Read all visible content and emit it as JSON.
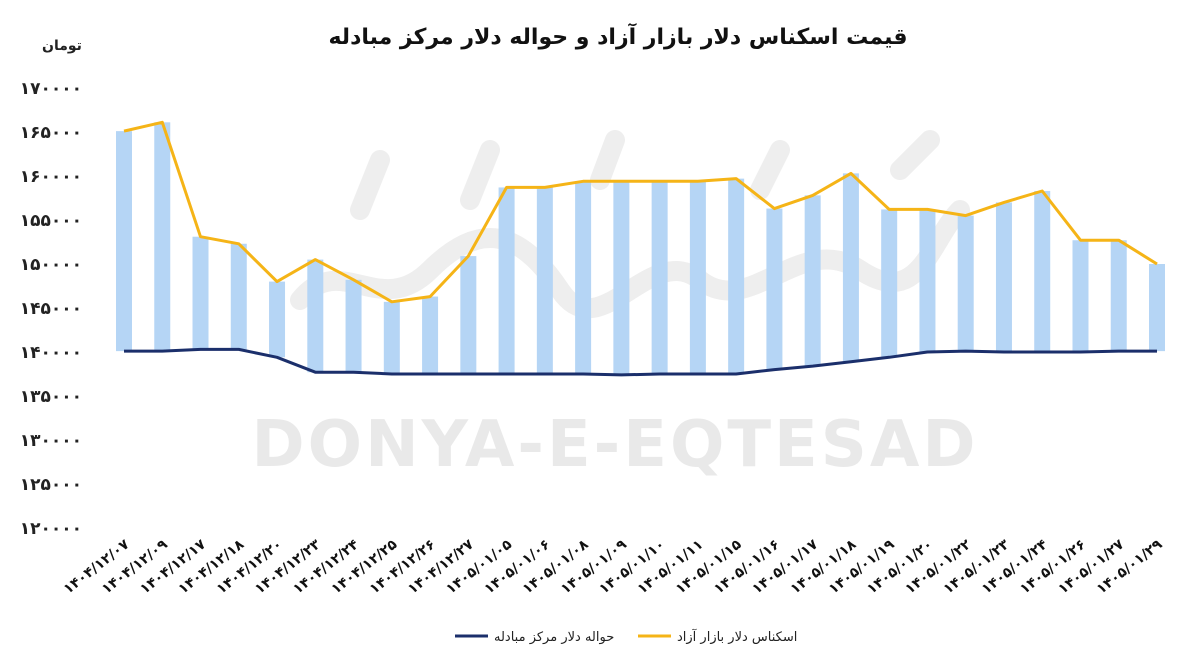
{
  "chart_data": {
    "type": "bar+line",
    "title": "قیمت اسکناس دلار بازار آزاد و حواله دلار مرکز مبادله",
    "unit_label": "تومان",
    "watermark": "DONYA-E-EQTESAD",
    "ylim": [
      120000,
      170000
    ],
    "yticks": [
      {
        "value": 170000,
        "label": "۱۷۰۰۰۰"
      },
      {
        "value": 165000,
        "label": "۱۶۵۰۰۰"
      },
      {
        "value": 160000,
        "label": "۱۶۰۰۰۰"
      },
      {
        "value": 155000,
        "label": "۱۵۵۰۰۰"
      },
      {
        "value": 150000,
        "label": "۱۵۰۰۰۰"
      },
      {
        "value": 145000,
        "label": "۱۴۵۰۰۰"
      },
      {
        "value": 140000,
        "label": "۱۴۰۰۰۰"
      },
      {
        "value": 135000,
        "label": "۱۳۵۰۰۰"
      },
      {
        "value": 130000,
        "label": "۱۳۰۰۰۰"
      },
      {
        "value": 125000,
        "label": "۱۲۵۰۰۰"
      },
      {
        "value": 120000,
        "label": "۱۲۰۰۰۰"
      }
    ],
    "categories": [
      "۱۴۰۴/۱۲/۰۷",
      "۱۴۰۴/۱۲/۰۹",
      "۱۴۰۴/۱۲/۱۷",
      "۱۴۰۴/۱۲/۱۸",
      "۱۴۰۴/۱۲/۲۰",
      "۱۴۰۴/۱۲/۲۳",
      "۱۴۰۴/۱۲/۲۴",
      "۱۴۰۴/۱۲/۲۵",
      "۱۴۰۴/۱۲/۲۶",
      "۱۴۰۴/۱۲/۲۷",
      "۱۴۰۵/۰۱/۰۵",
      "۱۴۰۵/۰۱/۰۶",
      "۱۴۰۵/۰۱/۰۸",
      "۱۴۰۵/۰۱/۰۹",
      "۱۴۰۵/۰۱/۱۰",
      "۱۴۰۵/۰۱/۱۱",
      "۱۴۰۵/۰۱/۱۵",
      "۱۴۰۵/۰۱/۱۶",
      "۱۴۰۵/۰۱/۱۷",
      "۱۴۰۵/۰۱/۱۸",
      "۱۴۰۵/۰۱/۱۹",
      "۱۴۰۵/۰۱/۲۰",
      "۱۴۰۵/۰۱/۲۲",
      "۱۴۰۵/۰۱/۲۳",
      "۱۴۰۵/۰۱/۲۴",
      "۱۴۰۵/۰۱/۲۶",
      "۱۴۰۵/۰۱/۲۷",
      "۱۴۰۵/۰۱/۲۹"
    ],
    "series": [
      {
        "name": "اسکناس دلار بازار آزاد",
        "color": "#f5b417",
        "values": [
          165100,
          166100,
          153100,
          152300,
          148000,
          150500,
          148200,
          145700,
          146300,
          150900,
          158700,
          158700,
          159400,
          159400,
          159400,
          159400,
          159700,
          156300,
          157800,
          160300,
          156200,
          156200,
          155500,
          157000,
          158300,
          152700,
          152700,
          150000
        ]
      },
      {
        "name": "حواله دلار مرکز مبادله",
        "color": "#1b2f6b",
        "values": [
          140100,
          140100,
          140300,
          140300,
          139400,
          137700,
          137700,
          137500,
          137500,
          137500,
          137500,
          137500,
          137500,
          137400,
          137500,
          137500,
          137500,
          138000,
          138400,
          138900,
          139400,
          140000,
          140100,
          140000,
          140000,
          140000,
          140100,
          140100
        ]
      }
    ],
    "bar_color": "#b5d5f5",
    "grid": false,
    "legend_position": "bottom"
  }
}
